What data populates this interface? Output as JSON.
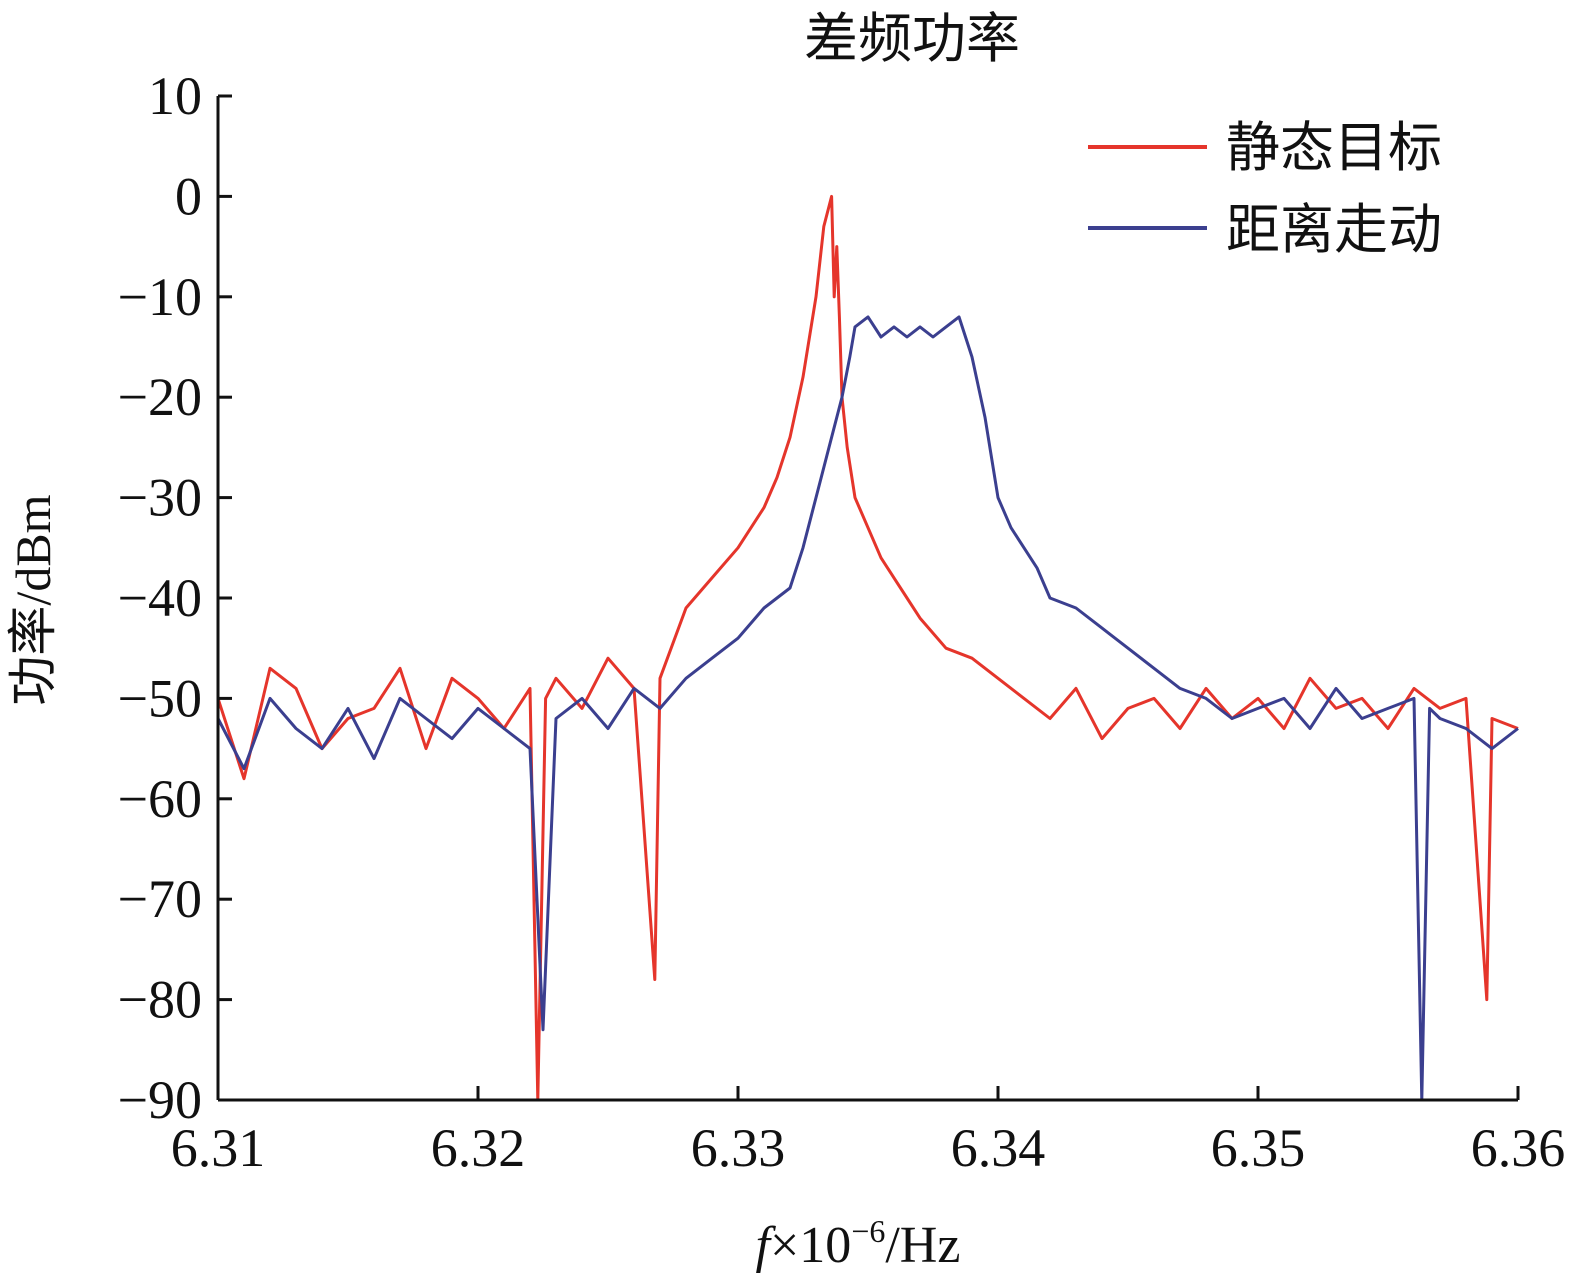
{
  "chart_data": {
    "type": "line",
    "title": "差频功率",
    "xlabel": "f×10⁻⁶/Hz",
    "xlabel_parts": {
      "var": "f",
      "rest": "×10",
      "exp": "−6",
      "unit": "/Hz"
    },
    "ylabel": "功率/dBm",
    "xlim": [
      6.31,
      6.36
    ],
    "ylim": [
      -90,
      10
    ],
    "xticks": [
      "6.31",
      "6.32",
      "6.33",
      "6.34",
      "6.35",
      "6.36"
    ],
    "yticks": [
      "10",
      "0",
      "−10",
      "−20",
      "−30",
      "−40",
      "−50",
      "−60",
      "−70",
      "−80",
      "−90"
    ],
    "grid": false,
    "legend_position": "top-right",
    "series": [
      {
        "name": "静态目标",
        "color": "#e5352b",
        "x": [
          6.31,
          6.311,
          6.312,
          6.313,
          6.314,
          6.315,
          6.316,
          6.317,
          6.318,
          6.319,
          6.32,
          6.321,
          6.322,
          6.3223,
          6.3226,
          6.323,
          6.324,
          6.325,
          6.326,
          6.3268,
          6.327,
          6.328,
          6.329,
          6.33,
          6.331,
          6.3315,
          6.332,
          6.3325,
          6.333,
          6.3333,
          6.3336,
          6.3337,
          6.3338,
          6.3339,
          6.334,
          6.3342,
          6.3345,
          6.335,
          6.3355,
          6.336,
          6.3365,
          6.337,
          6.338,
          6.339,
          6.34,
          6.341,
          6.342,
          6.343,
          6.344,
          6.345,
          6.346,
          6.347,
          6.348,
          6.349,
          6.35,
          6.351,
          6.352,
          6.353,
          6.354,
          6.355,
          6.356,
          6.357,
          6.358,
          6.3588,
          6.359,
          6.36
        ],
        "y": [
          -50,
          -58,
          -47,
          -49,
          -55,
          -52,
          -51,
          -47,
          -55,
          -48,
          -50,
          -53,
          -49,
          -90,
          -50,
          -48,
          -51,
          -46,
          -49,
          -78,
          -48,
          -41,
          -38,
          -35,
          -31,
          -28,
          -24,
          -18,
          -10,
          -3,
          0,
          -10,
          -5,
          -12,
          -20,
          -25,
          -30,
          -33,
          -36,
          -38,
          -40,
          -42,
          -45,
          -46,
          -48,
          -50,
          -52,
          -49,
          -54,
          -51,
          -50,
          -53,
          -49,
          -52,
          -50,
          -53,
          -48,
          -51,
          -50,
          -53,
          -49,
          -51,
          -50,
          -80,
          -52,
          -53
        ]
      },
      {
        "name": "距离走动",
        "color": "#3b3f8f",
        "x": [
          6.31,
          6.311,
          6.312,
          6.313,
          6.314,
          6.315,
          6.316,
          6.317,
          6.318,
          6.319,
          6.32,
          6.321,
          6.322,
          6.3225,
          6.323,
          6.324,
          6.325,
          6.326,
          6.327,
          6.328,
          6.329,
          6.33,
          6.331,
          6.332,
          6.3325,
          6.333,
          6.3335,
          6.334,
          6.3343,
          6.3345,
          6.335,
          6.3355,
          6.336,
          6.3365,
          6.337,
          6.3375,
          6.338,
          6.3385,
          6.339,
          6.3395,
          6.34,
          6.3405,
          6.341,
          6.3415,
          6.342,
          6.343,
          6.344,
          6.345,
          6.346,
          6.347,
          6.348,
          6.349,
          6.35,
          6.351,
          6.352,
          6.353,
          6.354,
          6.355,
          6.356,
          6.3563,
          6.3566,
          6.357,
          6.358,
          6.359,
          6.36
        ],
        "y": [
          -52,
          -57,
          -50,
          -53,
          -55,
          -51,
          -56,
          -50,
          -52,
          -54,
          -51,
          -53,
          -55,
          -83,
          -52,
          -50,
          -53,
          -49,
          -51,
          -48,
          -46,
          -44,
          -41,
          -39,
          -35,
          -30,
          -25,
          -20,
          -16,
          -13,
          -12,
          -14,
          -13,
          -14,
          -13,
          -14,
          -13,
          -12,
          -16,
          -22,
          -30,
          -33,
          -35,
          -37,
          -40,
          -41,
          -43,
          -45,
          -47,
          -49,
          -50,
          -52,
          -51,
          -50,
          -53,
          -49,
          -52,
          -51,
          -50,
          -90,
          -51,
          -52,
          -53,
          -55,
          -53
        ]
      }
    ]
  }
}
